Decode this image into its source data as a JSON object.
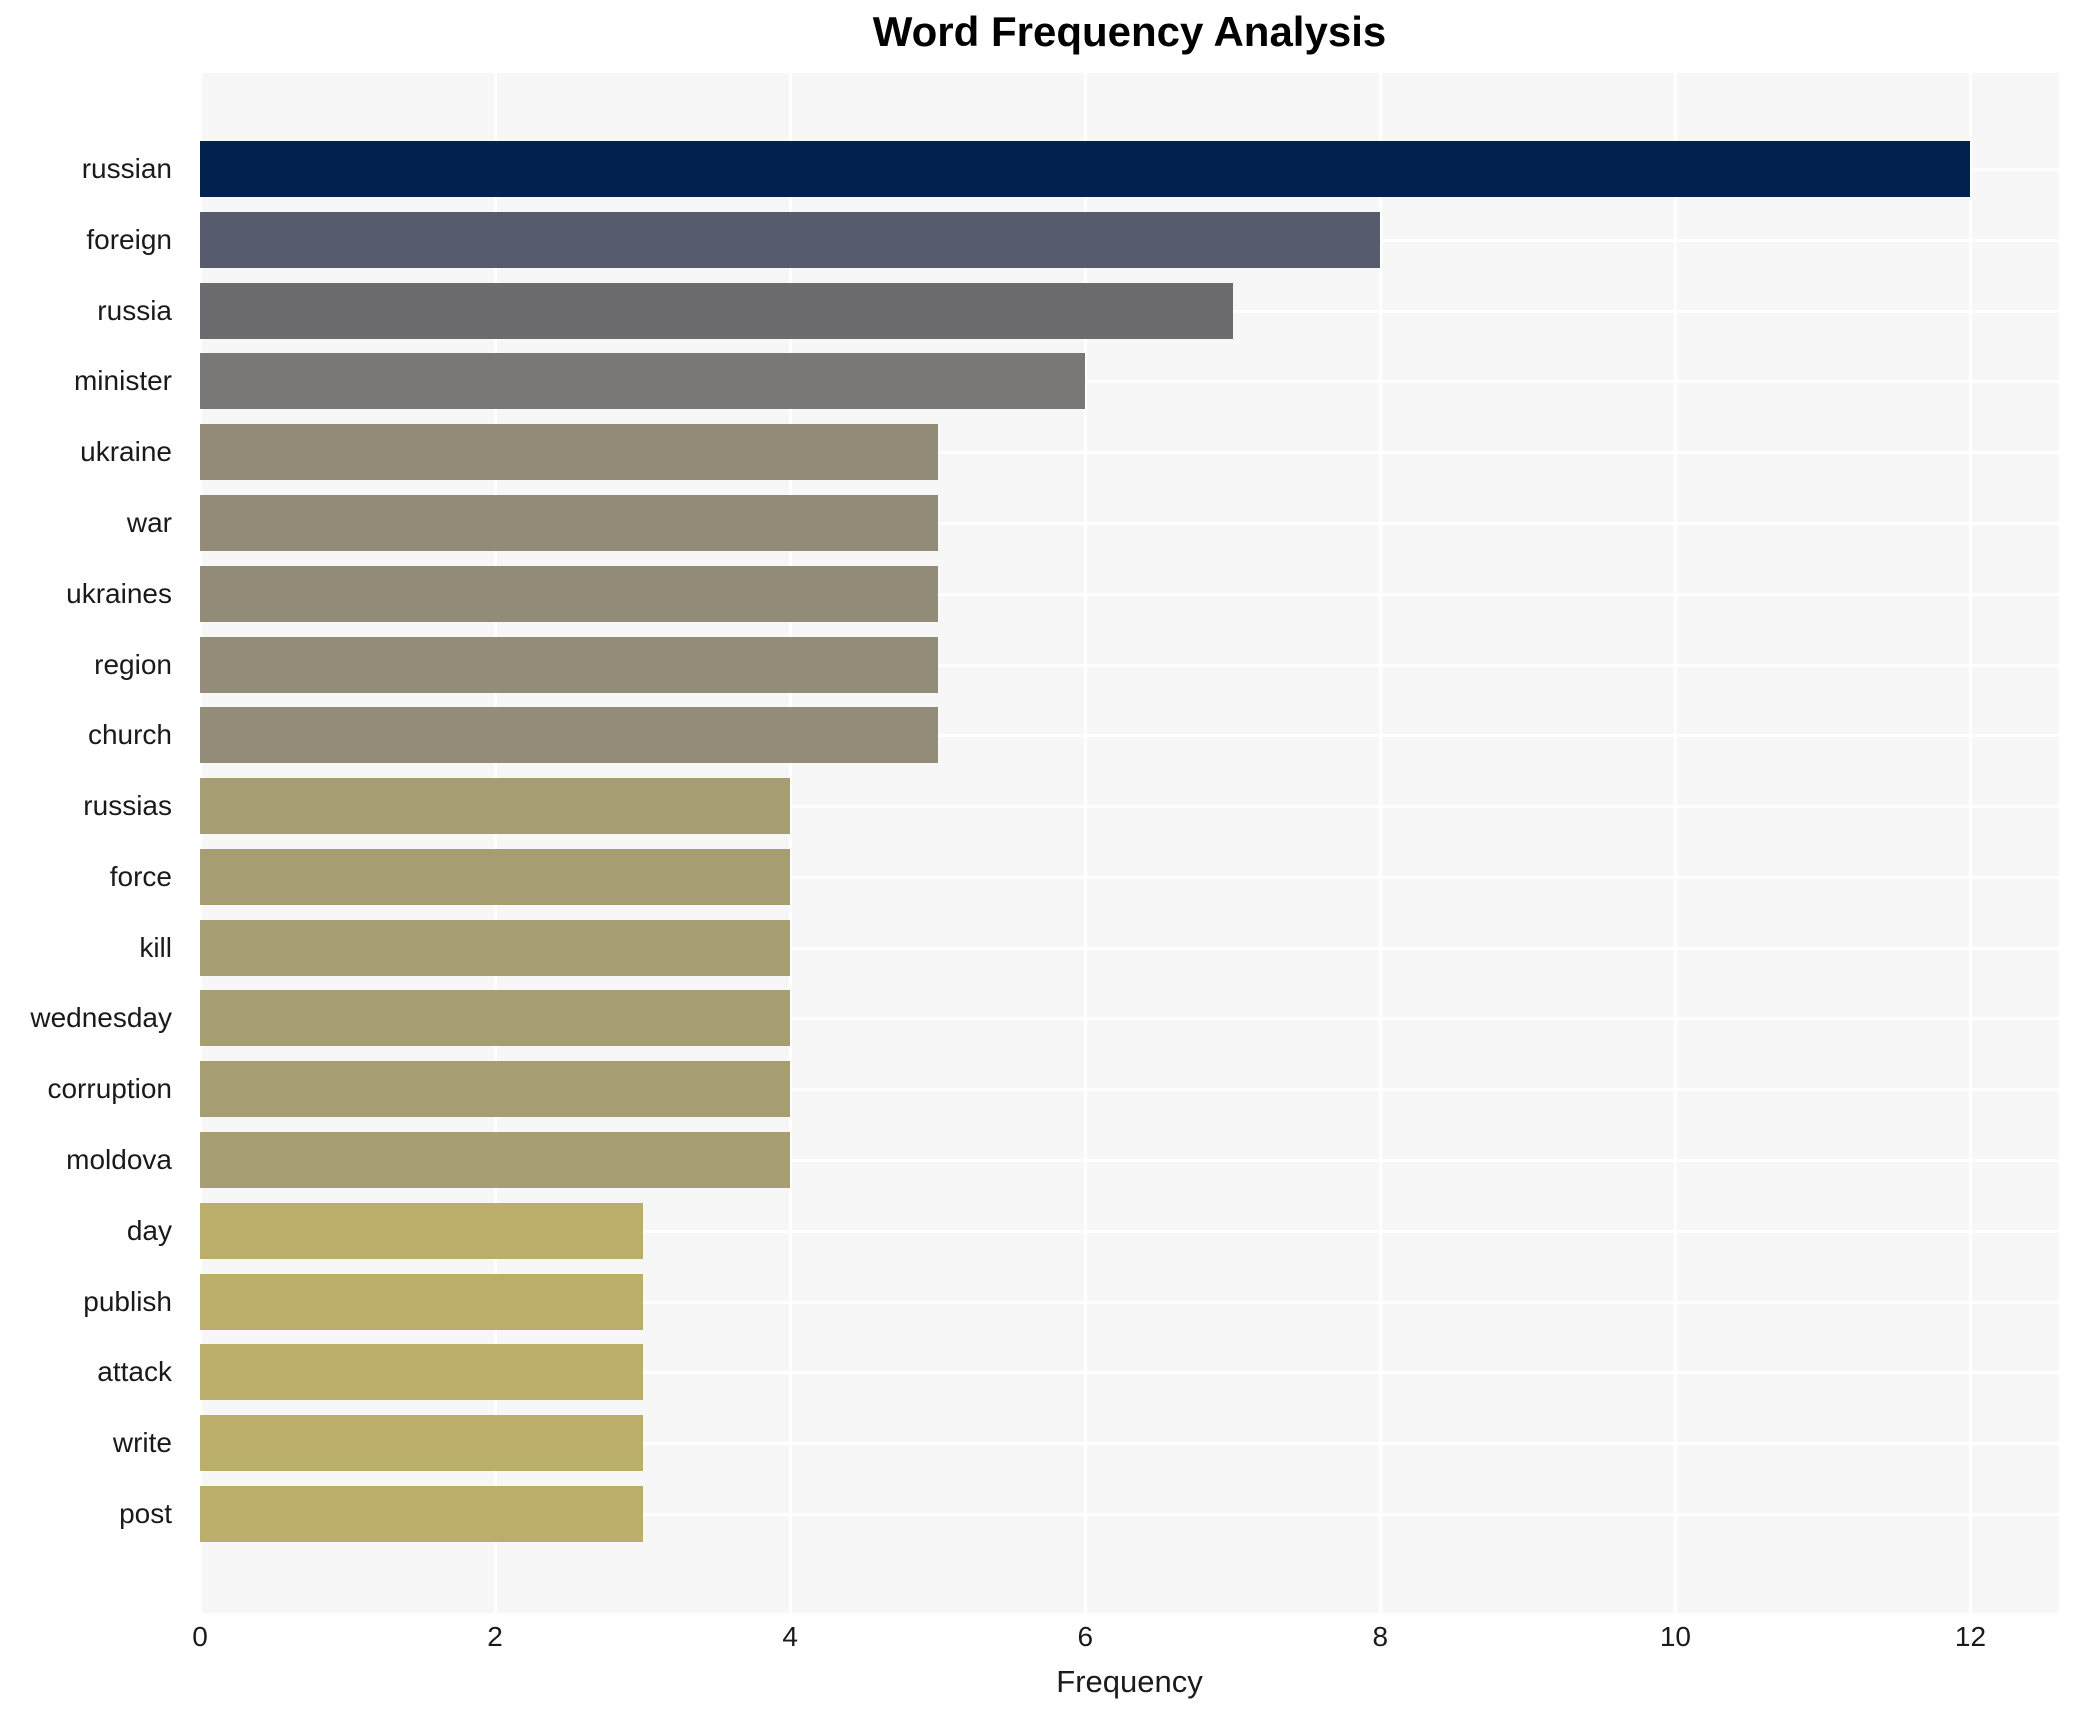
{
  "chart_data": {
    "type": "bar",
    "orientation": "horizontal",
    "title": "Word Frequency Analysis",
    "xlabel": "Frequency",
    "ylabel": "",
    "xlim": [
      0,
      12.6
    ],
    "xticks": [
      0,
      2,
      4,
      6,
      8,
      10,
      12
    ],
    "grid": true,
    "legend": false,
    "categories": [
      "russian",
      "foreign",
      "russia",
      "minister",
      "ukraine",
      "war",
      "ukraines",
      "region",
      "church",
      "russias",
      "force",
      "kill",
      "wednesday",
      "corruption",
      "moldova",
      "day",
      "publish",
      "attack",
      "write",
      "post"
    ],
    "values": [
      12,
      8,
      7,
      6,
      5,
      5,
      5,
      5,
      5,
      4,
      4,
      4,
      4,
      4,
      4,
      3,
      3,
      3,
      3,
      3
    ],
    "bar_colors": [
      "#02214d",
      "#565c6e",
      "#6b6b70",
      "#7a7877",
      "#918b78",
      "#918b78",
      "#918b78",
      "#928c79",
      "#928c79",
      "#a69e72",
      "#a69e72",
      "#a69e72",
      "#a69e72",
      "#a69e72",
      "#a69e72",
      "#bbae6b",
      "#bbae6b",
      "#bbae6b",
      "#bbae6b",
      "#bbae6b"
    ],
    "plot_bg_color": "#f7f7f7",
    "grid_color": "#ffffff",
    "text_color": "#1a1a1a",
    "title_color": "#000000"
  }
}
